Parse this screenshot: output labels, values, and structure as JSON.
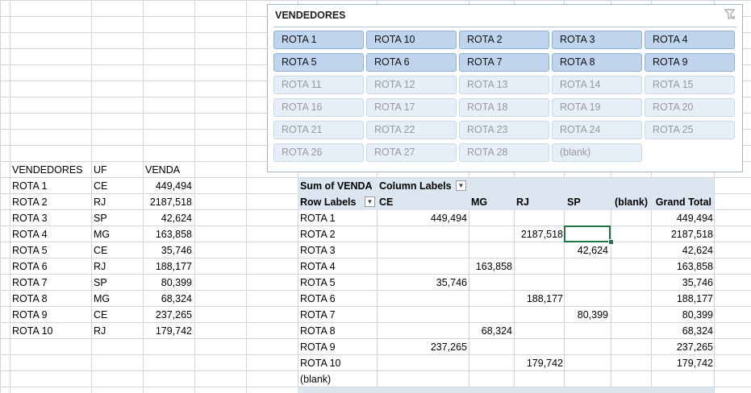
{
  "slicer": {
    "title": "VENDEDORES",
    "items": [
      {
        "label": "ROTA 1",
        "state": "on"
      },
      {
        "label": "ROTA 10",
        "state": "on"
      },
      {
        "label": "ROTA 2",
        "state": "on"
      },
      {
        "label": "ROTA 3",
        "state": "on"
      },
      {
        "label": "ROTA 4",
        "state": "on"
      },
      {
        "label": "ROTA 5",
        "state": "on"
      },
      {
        "label": "ROTA 6",
        "state": "on"
      },
      {
        "label": "ROTA 7",
        "state": "on"
      },
      {
        "label": "ROTA 8",
        "state": "on"
      },
      {
        "label": "ROTA 9",
        "state": "on"
      },
      {
        "label": "ROTA 11",
        "state": "off"
      },
      {
        "label": "ROTA 12",
        "state": "off"
      },
      {
        "label": "ROTA 13",
        "state": "off"
      },
      {
        "label": "ROTA 14",
        "state": "off"
      },
      {
        "label": "ROTA 15",
        "state": "off"
      },
      {
        "label": "ROTA 16",
        "state": "off"
      },
      {
        "label": "ROTA 17",
        "state": "off"
      },
      {
        "label": "ROTA 18",
        "state": "off"
      },
      {
        "label": "ROTA 19",
        "state": "off"
      },
      {
        "label": "ROTA 20",
        "state": "off"
      },
      {
        "label": "ROTA 21",
        "state": "off"
      },
      {
        "label": "ROTA 22",
        "state": "off"
      },
      {
        "label": "ROTA 23",
        "state": "off"
      },
      {
        "label": "ROTA 24",
        "state": "off"
      },
      {
        "label": "ROTA 25",
        "state": "off"
      },
      {
        "label": "ROTA 26",
        "state": "off"
      },
      {
        "label": "ROTA 27",
        "state": "off"
      },
      {
        "label": "ROTA 28",
        "state": "off"
      },
      {
        "label": "(blank)",
        "state": "off"
      }
    ]
  },
  "source_table": {
    "headers": [
      "VENDEDORES",
      "UF",
      "VENDA"
    ],
    "rows": [
      [
        "ROTA 1",
        "CE",
        "449,494"
      ],
      [
        "ROTA 2",
        "RJ",
        "2187,518"
      ],
      [
        "ROTA 3",
        "SP",
        "42,624"
      ],
      [
        "ROTA 4",
        "MG",
        "163,858"
      ],
      [
        "ROTA 5",
        "CE",
        "35,746"
      ],
      [
        "ROTA 6",
        "RJ",
        "188,177"
      ],
      [
        "ROTA 7",
        "SP",
        "80,399"
      ],
      [
        "ROTA 8",
        "MG",
        "68,324"
      ],
      [
        "ROTA 9",
        "CE",
        "237,265"
      ],
      [
        "ROTA 10",
        "RJ",
        "179,742"
      ]
    ]
  },
  "pivot": {
    "value_field": "Sum of VENDA",
    "column_labels": "Column Labels",
    "row_labels": "Row Labels",
    "columns": [
      "CE",
      "MG",
      "RJ",
      "SP",
      "(blank)",
      "Grand Total"
    ],
    "rows": [
      {
        "label": "ROTA 1",
        "CE": "449,494",
        "MG": "",
        "RJ": "",
        "SP": "",
        "total": "449,494"
      },
      {
        "label": "ROTA 2",
        "CE": "",
        "MG": "",
        "RJ": "2187,518",
        "SP": "",
        "total": "2187,518"
      },
      {
        "label": "ROTA 3",
        "CE": "",
        "MG": "",
        "RJ": "",
        "SP": "42,624",
        "total": "42,624"
      },
      {
        "label": "ROTA 4",
        "CE": "",
        "MG": "163,858",
        "RJ": "",
        "SP": "",
        "total": "163,858"
      },
      {
        "label": "ROTA 5",
        "CE": "35,746",
        "MG": "",
        "RJ": "",
        "SP": "",
        "total": "35,746"
      },
      {
        "label": "ROTA 6",
        "CE": "",
        "MG": "",
        "RJ": "188,177",
        "SP": "",
        "total": "188,177"
      },
      {
        "label": "ROTA 7",
        "CE": "",
        "MG": "",
        "RJ": "",
        "SP": "80,399",
        "total": "80,399"
      },
      {
        "label": "ROTA 8",
        "CE": "",
        "MG": "68,324",
        "RJ": "",
        "SP": "",
        "total": "68,324"
      },
      {
        "label": "ROTA 9",
        "CE": "237,265",
        "MG": "",
        "RJ": "",
        "SP": "",
        "total": "237,265"
      },
      {
        "label": "ROTA 10",
        "CE": "",
        "MG": "",
        "RJ": "179,742",
        "SP": "",
        "total": "179,742"
      },
      {
        "label": "(blank)",
        "CE": "",
        "MG": "",
        "RJ": "",
        "SP": "",
        "total": ""
      }
    ]
  }
}
